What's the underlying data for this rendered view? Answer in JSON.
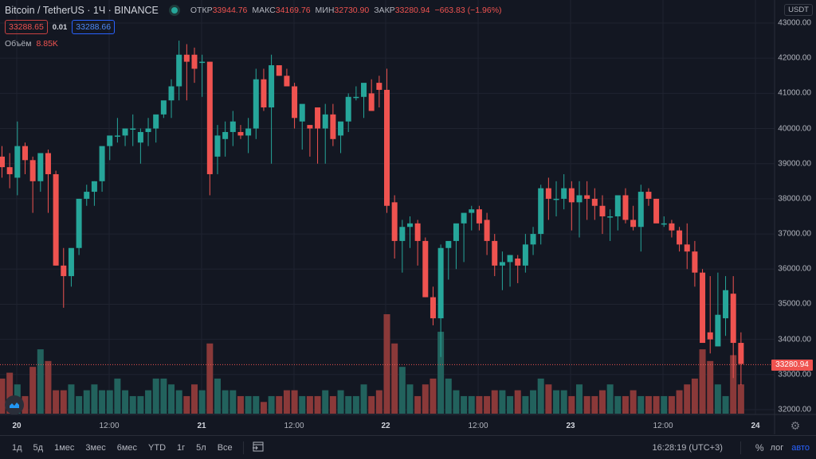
{
  "legend": {
    "symbol": "Bitcoin / TetherUS · 1Ч · BINANCE",
    "open_label": "ОТКР",
    "open": "33944.76",
    "high_label": "МАКС",
    "high": "34169.76",
    "low_label": "МИН",
    "low": "32730.90",
    "close_label": "ЗАКР",
    "close": "33280.94",
    "change": "−663.83 (−1.96%)"
  },
  "quote": {
    "bid": "33288.65",
    "spread": "0.01",
    "ask": "33288.66"
  },
  "volume": {
    "label": "Объём",
    "value": "8.85K"
  },
  "axis": {
    "currency": "USDT",
    "last_price": "33280.94"
  },
  "time_axis": [
    "20",
    "12:00",
    "21",
    "12:00",
    "22",
    "12:00",
    "23",
    "12:00",
    "24"
  ],
  "bottom_bar": {
    "ranges": [
      "1д",
      "5д",
      "1мес",
      "3мес",
      "6мес",
      "YTD",
      "1г",
      "5л",
      "Все"
    ],
    "clock": "16:28:19 (UTC+3)",
    "percent": "%",
    "log": "лог",
    "auto": "авто"
  },
  "colors": {
    "up": "#26a69a",
    "down": "#ef5350",
    "vol_up": "#22625d",
    "vol_down": "#8a3939",
    "bg": "#131722",
    "grid": "#1f2330"
  },
  "chart_data": {
    "type": "candlestick",
    "title": "Bitcoin / TetherUS · 1Ч · BINANCE",
    "xlabel": "",
    "ylabel": "USDT",
    "ylim": [
      31700,
      43300
    ],
    "y_ticks": [
      32000,
      33000,
      34000,
      35000,
      36000,
      37000,
      38000,
      39000,
      40000,
      41000,
      42000,
      43000
    ],
    "x_ticks": [
      "20",
      "12:00",
      "21",
      "12:00",
      "22",
      "12:00",
      "23",
      "12:00",
      "24"
    ],
    "grid": true,
    "candles": [
      [
        39200,
        39500,
        38600,
        38900
      ],
      [
        38900,
        39300,
        38300,
        38700
      ],
      [
        38600,
        40200,
        38100,
        39500
      ],
      [
        39500,
        39600,
        38700,
        39100
      ],
      [
        39100,
        39200,
        37600,
        38500
      ],
      [
        38500,
        39300,
        38200,
        39300
      ],
      [
        39300,
        39400,
        37600,
        38700
      ],
      [
        38700,
        38800,
        36100,
        36100
      ],
      [
        36100,
        36600,
        34900,
        35800
      ],
      [
        35800,
        36300,
        35500,
        36600
      ],
      [
        36600,
        38000,
        36400,
        38000
      ],
      [
        38000,
        38400,
        37800,
        38200
      ],
      [
        38200,
        38500,
        37800,
        38500
      ],
      [
        38500,
        39400,
        38200,
        39500
      ],
      [
        39500,
        39700,
        39100,
        39800
      ],
      [
        39800,
        40300,
        39600,
        39800
      ],
      [
        39800,
        40000,
        39500,
        40000
      ],
      [
        40000,
        40400,
        39500,
        40000
      ],
      [
        39600,
        40000,
        39000,
        39900
      ],
      [
        39900,
        40300,
        39500,
        40000
      ],
      [
        40000,
        40200,
        39600,
        40400
      ],
      [
        40400,
        40700,
        40300,
        40800
      ],
      [
        40800,
        41400,
        40300,
        41200
      ],
      [
        41200,
        42500,
        40800,
        42100
      ],
      [
        42100,
        42400,
        40800,
        41900
      ],
      [
        42100,
        42300,
        41300,
        41700
      ],
      [
        41900,
        42100,
        40900,
        41900
      ],
      [
        41900,
        41900,
        38100,
        38700
      ],
      [
        39200,
        40100,
        38700,
        39800
      ],
      [
        39700,
        40200,
        39200,
        39900
      ],
      [
        39900,
        40500,
        39500,
        40200
      ],
      [
        39900,
        40100,
        39700,
        39800
      ],
      [
        39800,
        40300,
        39300,
        40000
      ],
      [
        40000,
        41700,
        39700,
        41400
      ],
      [
        41400,
        41700,
        40500,
        40600
      ],
      [
        40600,
        42100,
        39000,
        41800
      ],
      [
        41800,
        41800,
        41500,
        41500
      ],
      [
        41500,
        41700,
        41200,
        41200
      ],
      [
        41200,
        41300,
        40000,
        40300
      ],
      [
        40200,
        40600,
        39400,
        40700
      ],
      [
        40100,
        40100,
        39200,
        40000
      ],
      [
        40600,
        40400,
        39000,
        40000
      ],
      [
        40000,
        40700,
        39000,
        40400
      ],
      [
        40400,
        40700,
        39500,
        39700
      ],
      [
        39800,
        39900,
        39300,
        40200
      ],
      [
        40200,
        41000,
        39900,
        40900
      ],
      [
        40900,
        41200,
        40800,
        40900
      ],
      [
        40900,
        41200,
        40300,
        41300
      ],
      [
        41000,
        41400,
        40600,
        40500
      ],
      [
        41300,
        41500,
        40600,
        41100
      ],
      [
        41100,
        41700,
        37600,
        37800
      ],
      [
        37900,
        38100,
        36300,
        36800
      ],
      [
        36800,
        37400,
        35900,
        37200
      ],
      [
        37200,
        37500,
        36600,
        37300
      ],
      [
        37300,
        37400,
        36100,
        36800
      ],
      [
        36800,
        36900,
        35200,
        35200
      ],
      [
        35200,
        35500,
        34400,
        34600
      ],
      [
        34600,
        36700,
        33500,
        36600
      ],
      [
        36600,
        36700,
        35700,
        36800
      ],
      [
        36800,
        37200,
        36000,
        37300
      ],
      [
        37300,
        37500,
        36200,
        37600
      ],
      [
        37600,
        37800,
        37100,
        37700
      ],
      [
        37700,
        37800,
        37100,
        37300
      ],
      [
        37400,
        37600,
        36400,
        36800
      ],
      [
        36800,
        37000,
        35800,
        36100
      ],
      [
        36100,
        36500,
        35400,
        36200
      ],
      [
        36200,
        36400,
        35500,
        36400
      ],
      [
        36300,
        36400,
        35600,
        36100
      ],
      [
        36100,
        37000,
        35900,
        36700
      ],
      [
        36700,
        37200,
        36400,
        37000
      ],
      [
        37000,
        38400,
        36700,
        38300
      ],
      [
        38300,
        38600,
        37400,
        38000
      ],
      [
        38000,
        38500,
        37500,
        38000
      ],
      [
        38000,
        38700,
        37700,
        38300
      ],
      [
        38300,
        38500,
        37100,
        37900
      ],
      [
        37900,
        38500,
        36900,
        38100
      ],
      [
        38100,
        38500,
        37400,
        38000
      ],
      [
        38000,
        38300,
        37400,
        37800
      ],
      [
        37800,
        38100,
        37000,
        37500
      ],
      [
        37500,
        37700,
        36800,
        37500
      ],
      [
        37500,
        38100,
        37100,
        38100
      ],
      [
        38100,
        38300,
        37300,
        37400
      ],
      [
        37400,
        37800,
        37100,
        37200
      ],
      [
        37200,
        38400,
        36500,
        38200
      ],
      [
        38200,
        38300,
        37800,
        38000
      ],
      [
        38000,
        38000,
        37500,
        37300
      ],
      [
        37300,
        37500,
        37200,
        37300
      ],
      [
        37300,
        37400,
        36900,
        37100
      ],
      [
        37100,
        37200,
        36500,
        36700
      ],
      [
        36700,
        37300,
        36000,
        36500
      ],
      [
        36500,
        36800,
        35500,
        35900
      ],
      [
        35900,
        36000,
        34000,
        33900
      ],
      [
        34200,
        35800,
        33600,
        34000
      ],
      [
        33800,
        35900,
        33800,
        34700
      ],
      [
        34600,
        35800,
        34100,
        35400
      ],
      [
        35300,
        35800,
        32900,
        33900
      ],
      [
        33900,
        34200,
        32700,
        33300
      ]
    ],
    "volume": [
      6,
      7,
      5,
      3,
      8,
      11,
      9,
      4,
      4,
      5,
      3,
      4,
      5,
      4,
      4,
      6,
      4,
      3,
      3,
      4,
      6,
      6,
      5,
      4,
      3,
      5,
      4,
      12,
      6,
      4,
      4,
      3,
      3,
      3,
      2,
      3,
      3,
      4,
      4,
      3,
      3,
      3,
      4,
      3,
      4,
      3,
      3,
      5,
      3,
      4,
      17,
      12,
      8,
      5,
      3,
      5,
      6,
      14,
      6,
      4,
      3,
      3,
      3,
      3,
      4,
      4,
      3,
      4,
      3,
      4,
      6,
      5,
      4,
      4,
      3,
      5,
      3,
      3,
      4,
      5,
      3,
      3,
      4,
      3,
      3,
      3,
      3,
      3,
      4,
      5,
      6,
      11,
      9,
      5,
      3,
      10,
      5
    ]
  }
}
